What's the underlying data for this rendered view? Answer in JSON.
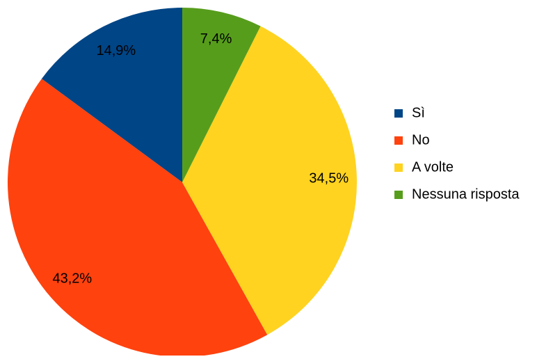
{
  "chart_data": {
    "type": "pie",
    "categories": [
      "Sì",
      "No",
      "A volte",
      "Nessuna risposta"
    ],
    "values": [
      14.9,
      43.2,
      34.5,
      7.4
    ],
    "value_labels": [
      "14,9%",
      "43,2%",
      "34,5%",
      "7,4%"
    ],
    "colors": [
      "#004586",
      "#ff420e",
      "#ffd320",
      "#579d1c"
    ],
    "legend": "right",
    "direction": "counterclockwise"
  }
}
